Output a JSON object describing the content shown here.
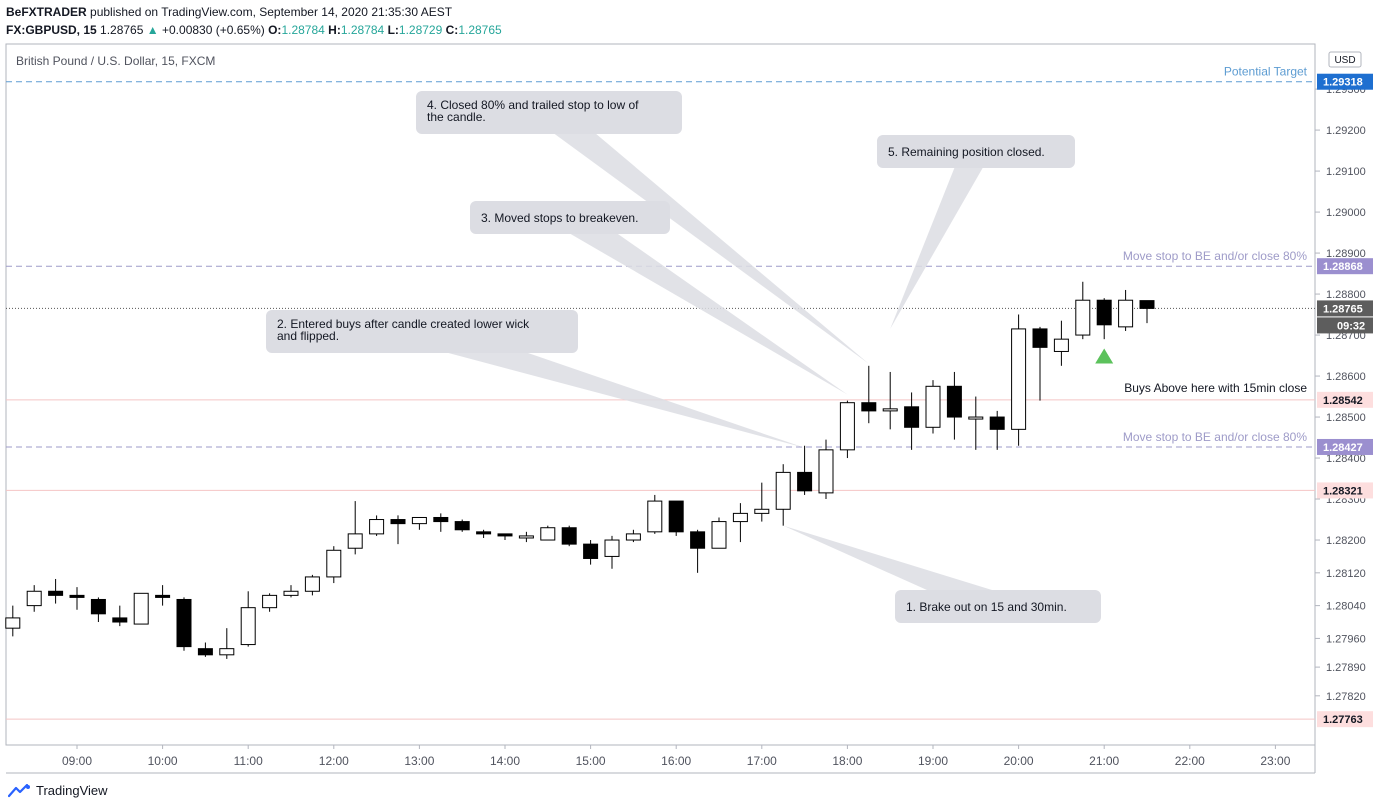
{
  "header": {
    "author": "BeFXTRADER",
    "published": "published on TradingView.com, September 14, 2020 21:35:30 AEST",
    "symbol": "FX:GBPUSD, 15",
    "last": "1.28765",
    "change": "+0.00830 (+0.65%)",
    "o_label": "O:",
    "o": "1.28784",
    "h_label": "H:",
    "h": "1.28784",
    "l_label": "L:",
    "l": "1.28729",
    "c_label": "C:",
    "c": "1.28765"
  },
  "footer": {
    "brand": "TradingView"
  },
  "chart_data": {
    "type": "candlestick",
    "title": "British Pound / U.S. Dollar, 15, FXCM",
    "currency": "USD",
    "x_ticks": [
      "09:00",
      "10:00",
      "11:00",
      "12:00",
      "13:00",
      "14:00",
      "15:00",
      "16:00",
      "17:00",
      "18:00",
      "19:00",
      "20:00",
      "21:00",
      "22:00",
      "23:00"
    ],
    "y_ticks": [
      "1.29300",
      "1.29200",
      "1.29100",
      "1.29000",
      "1.28900",
      "1.28800",
      "1.28700",
      "1.28600",
      "1.28500",
      "1.28400",
      "1.28300",
      "1.28200",
      "1.28120",
      "1.28040",
      "1.27960",
      "1.27890",
      "1.27820"
    ],
    "ylim": [
      1.277,
      1.2941
    ],
    "candles": [
      {
        "t": "08:15",
        "o": 1.27985,
        "h": 1.2804,
        "l": 1.27965,
        "c": 1.2801
      },
      {
        "t": "08:30",
        "o": 1.2804,
        "h": 1.2809,
        "l": 1.28025,
        "c": 1.28075
      },
      {
        "t": "08:45",
        "o": 1.28075,
        "h": 1.28105,
        "l": 1.28045,
        "c": 1.28065
      },
      {
        "t": "09:00",
        "o": 1.28065,
        "h": 1.28085,
        "l": 1.2803,
        "c": 1.2806
      },
      {
        "t": "09:15",
        "o": 1.28055,
        "h": 1.2806,
        "l": 1.28,
        "c": 1.2802
      },
      {
        "t": "09:30",
        "o": 1.2801,
        "h": 1.2804,
        "l": 1.2799,
        "c": 1.28
      },
      {
        "t": "09:45",
        "o": 1.27995,
        "h": 1.2807,
        "l": 1.27995,
        "c": 1.2807
      },
      {
        "t": "10:00",
        "o": 1.28065,
        "h": 1.2809,
        "l": 1.2804,
        "c": 1.2806
      },
      {
        "t": "10:15",
        "o": 1.28055,
        "h": 1.2806,
        "l": 1.2793,
        "c": 1.2794
      },
      {
        "t": "10:30",
        "o": 1.27935,
        "h": 1.2795,
        "l": 1.27915,
        "c": 1.2792
      },
      {
        "t": "10:45",
        "o": 1.2792,
        "h": 1.27985,
        "l": 1.2791,
        "c": 1.27935
      },
      {
        "t": "11:00",
        "o": 1.27945,
        "h": 1.28075,
        "l": 1.2794,
        "c": 1.28035
      },
      {
        "t": "11:15",
        "o": 1.28035,
        "h": 1.2807,
        "l": 1.28025,
        "c": 1.28065
      },
      {
        "t": "11:30",
        "o": 1.28065,
        "h": 1.2809,
        "l": 1.2806,
        "c": 1.28075
      },
      {
        "t": "11:45",
        "o": 1.28075,
        "h": 1.28115,
        "l": 1.28065,
        "c": 1.2811
      },
      {
        "t": "12:00",
        "o": 1.2811,
        "h": 1.28185,
        "l": 1.28095,
        "c": 1.28175
      },
      {
        "t": "12:15",
        "o": 1.2818,
        "h": 1.28295,
        "l": 1.28165,
        "c": 1.28215
      },
      {
        "t": "12:30",
        "o": 1.28215,
        "h": 1.2826,
        "l": 1.2821,
        "c": 1.2825
      },
      {
        "t": "12:45",
        "o": 1.2825,
        "h": 1.2826,
        "l": 1.2819,
        "c": 1.2824
      },
      {
        "t": "13:00",
        "o": 1.2824,
        "h": 1.28255,
        "l": 1.28225,
        "c": 1.28255
      },
      {
        "t": "13:15",
        "o": 1.28255,
        "h": 1.28265,
        "l": 1.2822,
        "c": 1.28245
      },
      {
        "t": "13:30",
        "o": 1.28245,
        "h": 1.2825,
        "l": 1.2822,
        "c": 1.28225
      },
      {
        "t": "13:45",
        "o": 1.2822,
        "h": 1.28225,
        "l": 1.28205,
        "c": 1.28215
      },
      {
        "t": "14:00",
        "o": 1.28215,
        "h": 1.28215,
        "l": 1.282,
        "c": 1.2821
      },
      {
        "t": "14:15",
        "o": 1.28205,
        "h": 1.2822,
        "l": 1.28195,
        "c": 1.2821
      },
      {
        "t": "14:30",
        "o": 1.282,
        "h": 1.28235,
        "l": 1.282,
        "c": 1.2823
      },
      {
        "t": "14:45",
        "o": 1.2823,
        "h": 1.28235,
        "l": 1.28185,
        "c": 1.2819
      },
      {
        "t": "15:00",
        "o": 1.2819,
        "h": 1.282,
        "l": 1.2814,
        "c": 1.28155
      },
      {
        "t": "15:15",
        "o": 1.2816,
        "h": 1.2821,
        "l": 1.2813,
        "c": 1.282
      },
      {
        "t": "15:30",
        "o": 1.282,
        "h": 1.28225,
        "l": 1.28195,
        "c": 1.28215
      },
      {
        "t": "15:45",
        "o": 1.2822,
        "h": 1.2831,
        "l": 1.28215,
        "c": 1.28295
      },
      {
        "t": "16:00",
        "o": 1.28295,
        "h": 1.28295,
        "l": 1.2821,
        "c": 1.2822
      },
      {
        "t": "16:15",
        "o": 1.2822,
        "h": 1.28225,
        "l": 1.2812,
        "c": 1.2818
      },
      {
        "t": "16:30",
        "o": 1.2818,
        "h": 1.28255,
        "l": 1.2818,
        "c": 1.28245
      },
      {
        "t": "16:45",
        "o": 1.28245,
        "h": 1.2829,
        "l": 1.28195,
        "c": 1.28265
      },
      {
        "t": "17:00",
        "o": 1.28265,
        "h": 1.2834,
        "l": 1.28245,
        "c": 1.28275
      },
      {
        "t": "17:15",
        "o": 1.28275,
        "h": 1.28385,
        "l": 1.28235,
        "c": 1.28365
      },
      {
        "t": "17:30",
        "o": 1.28365,
        "h": 1.2843,
        "l": 1.2831,
        "c": 1.2832
      },
      {
        "t": "17:45",
        "o": 1.28315,
        "h": 1.28445,
        "l": 1.283,
        "c": 1.2842
      },
      {
        "t": "18:00",
        "o": 1.2842,
        "h": 1.2854,
        "l": 1.284,
        "c": 1.28535
      },
      {
        "t": "18:15",
        "o": 1.28535,
        "h": 1.28625,
        "l": 1.28485,
        "c": 1.28515
      },
      {
        "t": "18:30",
        "o": 1.28515,
        "h": 1.2861,
        "l": 1.2847,
        "c": 1.2852
      },
      {
        "t": "18:45",
        "o": 1.28525,
        "h": 1.2856,
        "l": 1.2842,
        "c": 1.28475
      },
      {
        "t": "19:00",
        "o": 1.28475,
        "h": 1.2859,
        "l": 1.2846,
        "c": 1.28575
      },
      {
        "t": "19:15",
        "o": 1.28575,
        "h": 1.2861,
        "l": 1.28445,
        "c": 1.285
      },
      {
        "t": "19:30",
        "o": 1.285,
        "h": 1.2855,
        "l": 1.2842,
        "c": 1.285
      },
      {
        "t": "19:45",
        "o": 1.285,
        "h": 1.28515,
        "l": 1.2842,
        "c": 1.2847
      },
      {
        "t": "20:00",
        "o": 1.2847,
        "h": 1.2875,
        "l": 1.2843,
        "c": 1.28715
      },
      {
        "t": "20:15",
        "o": 1.28715,
        "h": 1.2872,
        "l": 1.2854,
        "c": 1.2867
      },
      {
        "t": "20:30",
        "o": 1.2866,
        "h": 1.28735,
        "l": 1.28625,
        "c": 1.2869
      },
      {
        "t": "20:45",
        "o": 1.287,
        "h": 1.2883,
        "l": 1.2869,
        "c": 1.28785
      },
      {
        "t": "21:00",
        "o": 1.28785,
        "h": 1.2879,
        "l": 1.2869,
        "c": 1.28725
      },
      {
        "t": "21:15",
        "o": 1.2872,
        "h": 1.2881,
        "l": 1.2871,
        "c": 1.28785
      },
      {
        "t": "21:30",
        "o": 1.28784,
        "h": 1.28784,
        "l": 1.28729,
        "c": 1.28765
      }
    ],
    "levels": [
      {
        "price": 1.29318,
        "label": "1.29318",
        "text": "Potential Target",
        "style": "dashed",
        "color": "#5d9cd2",
        "tag_bg": "#1e6fd0"
      },
      {
        "price": 1.28868,
        "label": "1.28868",
        "text": "Move stop to BE and/or close 80%",
        "style": "dashed",
        "color": "#9e9bc8",
        "tag_bg": "#9b8fcf"
      },
      {
        "price": 1.28765,
        "label": "1.28765",
        "text": "",
        "style": "dotted",
        "color": "#555555",
        "tag_bg": "#5d5d5d",
        "countdown": "09:32"
      },
      {
        "price": 1.28542,
        "label": "1.28542",
        "text": "Buys Above here with 15min close",
        "style": "solid",
        "color": "#f4c5c5",
        "tag_bg": "#fddede"
      },
      {
        "price": 1.28427,
        "label": "1.28427",
        "text": "Move stop to BE and/or close 80%",
        "style": "dashed",
        "color": "#9e9bc8",
        "tag_bg": "#9b8fcf"
      },
      {
        "price": 1.28321,
        "label": "1.28321",
        "text": "",
        "style": "solid",
        "color": "#f4c5c5",
        "tag_bg": "#fddede"
      },
      {
        "price": 1.27763,
        "label": "1.27763",
        "text": "",
        "style": "solid",
        "color": "#f4c5c5",
        "tag_bg": "#fddede"
      }
    ],
    "annotations": [
      {
        "id": "note-1",
        "lines": [
          "1. Brake out on 15 and 30min."
        ],
        "anchor": {
          "t": "17:15",
          "p": 1.28235
        }
      },
      {
        "id": "note-2",
        "lines": [
          "2. Entered buys after candle created lower wick",
          "and flipped."
        ],
        "anchor": {
          "t": "17:30",
          "p": 1.28425
        }
      },
      {
        "id": "note-3",
        "lines": [
          "3. Moved stops to breakeven."
        ],
        "anchor": {
          "t": "18:00",
          "p": 1.28555
        }
      },
      {
        "id": "note-4",
        "lines": [
          "4. Closed 80% and trailed stop to low of",
          "the candle."
        ],
        "anchor": {
          "t": "18:15",
          "p": 1.2863
        }
      },
      {
        "id": "note-5",
        "lines": [
          "5. Remaining position closed."
        ],
        "anchor": {
          "t": "18:30",
          "p": 1.28715
        }
      }
    ],
    "signal": {
      "type": "buy-arrow",
      "t": "21:00",
      "p": 1.2865,
      "color": "#5cc25c"
    }
  }
}
